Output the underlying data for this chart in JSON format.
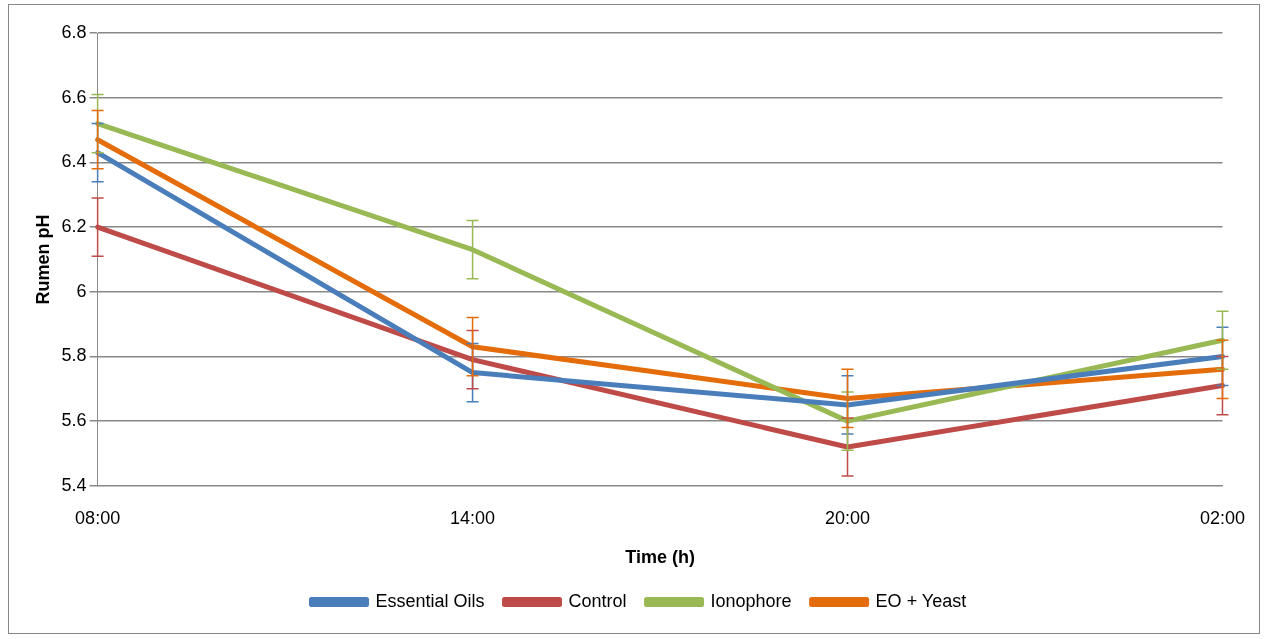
{
  "chart_data": {
    "type": "line",
    "xlabel": "Time (h)",
    "ylabel": "Rumen pH",
    "categories": [
      "08:00",
      "14:00",
      "20:00",
      "02:00"
    ],
    "series": [
      {
        "name": "Essential Oils",
        "color": "#4a7ebb",
        "values": [
          6.43,
          5.75,
          5.65,
          5.8
        ],
        "errors": [
          0.09,
          0.09,
          0.09,
          0.09
        ]
      },
      {
        "name": "Control",
        "color": "#be4b48",
        "values": [
          6.2,
          5.79,
          5.52,
          5.71
        ],
        "errors": [
          0.09,
          0.09,
          0.09,
          0.09
        ]
      },
      {
        "name": "Ionophore",
        "color": "#98b954",
        "values": [
          6.52,
          6.13,
          5.6,
          5.85
        ],
        "errors": [
          0.09,
          0.09,
          0.09,
          0.09
        ]
      },
      {
        "name": "EO + Yeast",
        "color": "#e46c0a",
        "values": [
          6.47,
          5.83,
          5.67,
          5.76
        ],
        "errors": [
          0.09,
          0.09,
          0.09,
          0.09
        ]
      }
    ],
    "ylim": [
      5.4,
      6.8
    ],
    "yticks": [
      5.4,
      5.6,
      5.8,
      6,
      6.2,
      6.4,
      6.6,
      6.8
    ],
    "grid": "y",
    "legend": "bottom",
    "marker": "none",
    "line_style": "solid"
  }
}
